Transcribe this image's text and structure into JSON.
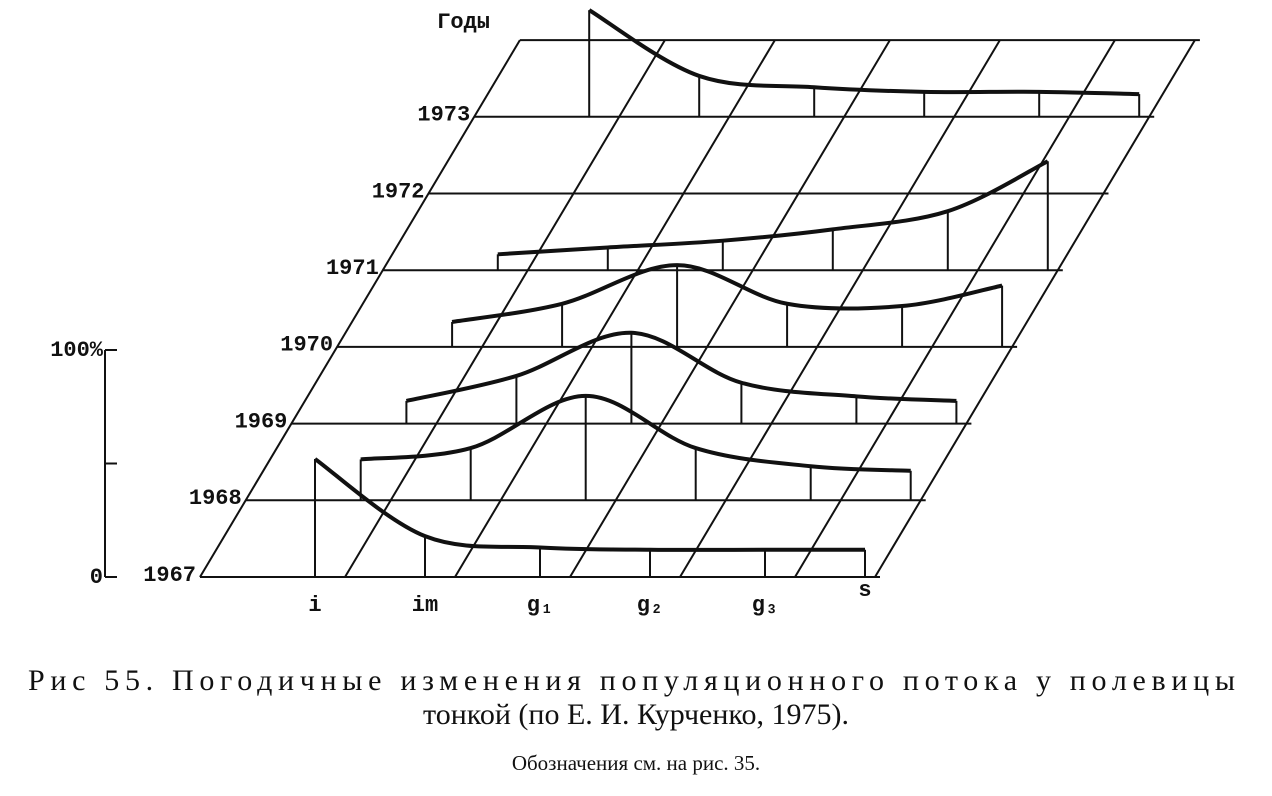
{
  "chart_data": {
    "type": "perspective-line",
    "y_label": "Годы",
    "categories": [
      "i",
      "im",
      "g₁",
      "g₂",
      "g₃",
      "s"
    ],
    "ylim": [
      0,
      100
    ],
    "yticks": [
      0,
      {
        "value": 50,
        "label": null
      },
      {
        "value": 100,
        "label": "100%"
      }
    ],
    "color": "#111111",
    "series": [
      {
        "name": "1967",
        "values": [
          52,
          18,
          13,
          12,
          12,
          12
        ]
      },
      {
        "name": "1968",
        "values": [
          18,
          23,
          46,
          23,
          15,
          13
        ]
      },
      {
        "name": "1969",
        "values": [
          10,
          21,
          40,
          18,
          12,
          10
        ]
      },
      {
        "name": "1970",
        "values": [
          11,
          19,
          36,
          19,
          18,
          27
        ]
      },
      {
        "name": "1971",
        "values": [
          7,
          10,
          13,
          18,
          26,
          48
        ]
      },
      {
        "name": "1972",
        "values": [
          null,
          null,
          null,
          null,
          null,
          null
        ]
      },
      {
        "name": "1973",
        "values": [
          47,
          18,
          13,
          11,
          11,
          10
        ]
      }
    ],
    "caption": [
      "Рис 55. Погодичные изменения популяционного потока у полевицы",
      "тонкой (по Е. И. Курченко, 1975)."
    ],
    "note": "Обозначения см. на рис. 35."
  }
}
